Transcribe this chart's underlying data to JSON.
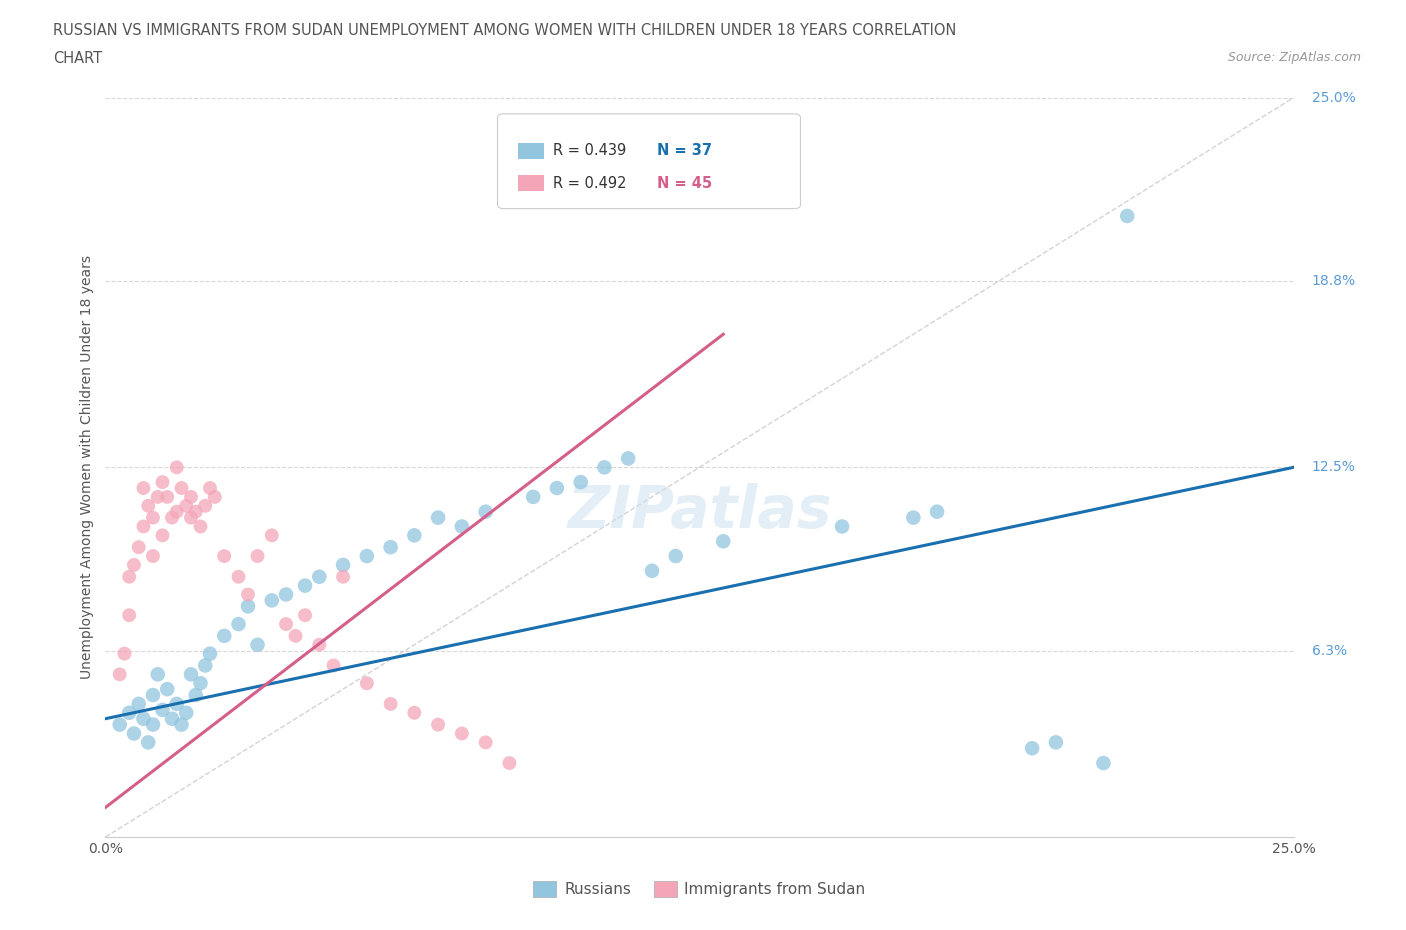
{
  "title_line1": "RUSSIAN VS IMMIGRANTS FROM SUDAN UNEMPLOYMENT AMONG WOMEN WITH CHILDREN UNDER 18 YEARS CORRELATION",
  "title_line2": "CHART",
  "source": "Source: ZipAtlas.com",
  "ylabel": "Unemployment Among Women with Children Under 18 years",
  "xlim": [
    0,
    0.25
  ],
  "ylim": [
    0,
    0.25
  ],
  "ytick_positions": [
    0.063,
    0.125,
    0.188,
    0.25
  ],
  "ytick_labels": [
    "6.3%",
    "12.5%",
    "18.8%",
    "25.0%"
  ],
  "legend_blue_label": "Russians",
  "legend_pink_label": "Immigrants from Sudan",
  "color_blue": "#92c5de",
  "color_pink": "#f4a6b8",
  "color_trend_blue": "#1a6faf",
  "color_trend_pink": "#d45f8a",
  "color_diagonal": "#c8c8c8",
  "watermark": "ZIPatlas",
  "background_color": "#ffffff",
  "grid_color": "#d8d8d8",
  "russians_x": [
    0.003,
    0.005,
    0.006,
    0.007,
    0.008,
    0.009,
    0.01,
    0.01,
    0.011,
    0.012,
    0.013,
    0.014,
    0.015,
    0.016,
    0.017,
    0.018,
    0.019,
    0.02,
    0.021,
    0.022,
    0.025,
    0.028,
    0.03,
    0.032,
    0.035,
    0.038,
    0.042,
    0.045,
    0.05,
    0.055,
    0.06,
    0.065,
    0.07,
    0.075,
    0.08,
    0.09,
    0.095,
    0.1,
    0.105,
    0.11,
    0.115,
    0.12,
    0.13,
    0.155,
    0.17,
    0.175,
    0.195,
    0.2,
    0.21,
    0.215
  ],
  "russians_y": [
    0.038,
    0.042,
    0.035,
    0.045,
    0.04,
    0.032,
    0.048,
    0.038,
    0.055,
    0.043,
    0.05,
    0.04,
    0.045,
    0.038,
    0.042,
    0.055,
    0.048,
    0.052,
    0.058,
    0.062,
    0.068,
    0.072,
    0.078,
    0.065,
    0.08,
    0.082,
    0.085,
    0.088,
    0.092,
    0.095,
    0.098,
    0.102,
    0.108,
    0.105,
    0.11,
    0.115,
    0.118,
    0.12,
    0.125,
    0.128,
    0.09,
    0.095,
    0.1,
    0.105,
    0.108,
    0.11,
    0.03,
    0.032,
    0.025,
    0.21
  ],
  "sudan_x": [
    0.003,
    0.004,
    0.005,
    0.005,
    0.006,
    0.007,
    0.008,
    0.008,
    0.009,
    0.01,
    0.01,
    0.011,
    0.012,
    0.012,
    0.013,
    0.014,
    0.015,
    0.015,
    0.016,
    0.017,
    0.018,
    0.018,
    0.019,
    0.02,
    0.021,
    0.022,
    0.023,
    0.025,
    0.028,
    0.03,
    0.032,
    0.035,
    0.038,
    0.04,
    0.042,
    0.045,
    0.048,
    0.05,
    0.055,
    0.06,
    0.065,
    0.07,
    0.075,
    0.08,
    0.085
  ],
  "sudan_y": [
    0.055,
    0.062,
    0.075,
    0.088,
    0.092,
    0.098,
    0.105,
    0.118,
    0.112,
    0.095,
    0.108,
    0.115,
    0.102,
    0.12,
    0.115,
    0.108,
    0.11,
    0.125,
    0.118,
    0.112,
    0.115,
    0.108,
    0.11,
    0.105,
    0.112,
    0.118,
    0.115,
    0.095,
    0.088,
    0.082,
    0.095,
    0.102,
    0.072,
    0.068,
    0.075,
    0.065,
    0.058,
    0.088,
    0.052,
    0.045,
    0.042,
    0.038,
    0.035,
    0.032,
    0.025
  ]
}
